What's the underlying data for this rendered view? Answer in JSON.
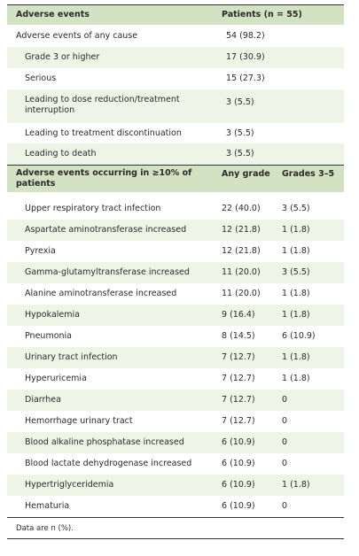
{
  "table": {
    "header1": [
      "Adverse events",
      "Patients (n = 55)"
    ],
    "rows1": [
      [
        "Adverse events of any cause",
        "54 (98.2)"
      ],
      [
        "Grade 3 or higher",
        "17 (30.9)"
      ],
      [
        "Serious",
        "15 (27.3)"
      ],
      [
        "Leading to dose reduction/treatment interruption",
        "3 (5.5)"
      ],
      [
        "Leading to treatment discontinuation",
        "3 (5.5)"
      ],
      [
        "Leading to death",
        "3 (5.5)"
      ]
    ],
    "header2": [
      "Adverse events occurring in ≥10% of patients",
      "Any grade",
      "Grades 3–5"
    ],
    "rows2": [
      [
        "Upper respiratory tract infection",
        "22 (40.0)",
        "3 (5.5)"
      ],
      [
        "Aspartate aminotransferase increased",
        "12 (21.8)",
        "1 (1.8)"
      ],
      [
        "Pyrexia",
        "12 (21.8)",
        "1 (1.8)"
      ],
      [
        "Gamma-glutamyltransferase increased",
        "11 (20.0)",
        "3 (5.5)"
      ],
      [
        "Alanine aminotransferase increased",
        "11 (20.0)",
        "1 (1.8)"
      ],
      [
        "Hypokalemia",
        "9 (16.4)",
        "1 (1.8)"
      ],
      [
        "Pneumonia",
        "8 (14.5)",
        "6 (10.9)"
      ],
      [
        "Urinary tract infection",
        "7 (12.7)",
        "1 (1.8)"
      ],
      [
        "Hyperuricemia",
        "7 (12.7)",
        "1 (1.8)"
      ],
      [
        "Diarrhea",
        "7 (12.7)",
        "0"
      ],
      [
        "Hemorrhage urinary tract",
        "7 (12.7)",
        "0"
      ],
      [
        "Blood alkaline phosphatase increased",
        "6 (10.9)",
        "0"
      ],
      [
        "Blood lactate dehydrogenase increased",
        "6 (10.9)",
        "0"
      ],
      [
        "Hypertriglyceridemia",
        "6 (10.9)",
        "1 (1.8)"
      ],
      [
        "Hematuria",
        "6 (10.9)",
        "0"
      ]
    ],
    "footnote": "Data are n (%)."
  }
}
